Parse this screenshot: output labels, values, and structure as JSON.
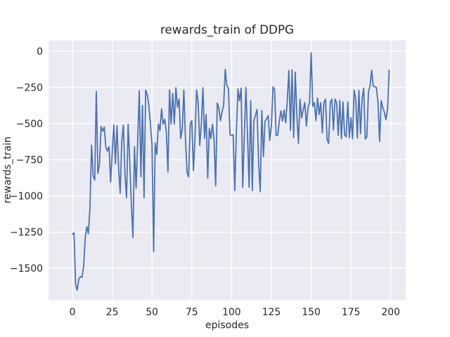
{
  "chart_data": {
    "type": "line",
    "title": "rewards_train of DDPG",
    "xlabel": "episodes",
    "ylabel": "rewards_train",
    "style": "seaborn-darkgrid",
    "grid": true,
    "legend": false,
    "x_start": 0,
    "x_step": 1,
    "xlim": [
      -14.9,
      209.4
    ],
    "ylim": [
      -1719,
      75
    ],
    "x_ticks": [
      0,
      25,
      50,
      75,
      100,
      125,
      150,
      175,
      200
    ],
    "x_tick_labels": [
      "0",
      "25",
      "50",
      "75",
      "100",
      "125",
      "150",
      "175",
      "200"
    ],
    "y_ticks": [
      0,
      -250,
      -500,
      -750,
      -1000,
      -1250,
      -1500
    ],
    "y_tick_labels": [
      "0",
      "−250",
      "−500",
      "−750",
      "−1000",
      "−1250",
      "−1500"
    ],
    "colors": {
      "line": "#4c72b0",
      "axes_background": "#eaeaf2",
      "grid": "#ffffff",
      "text": "#262626",
      "figure_background": "#ffffff"
    },
    "series": [
      {
        "name": "rewards_train",
        "values": [
          -1264,
          -1255,
          -1611,
          -1652,
          -1574,
          -1558,
          -1562,
          -1490,
          -1296,
          -1213,
          -1261,
          -1085,
          -650,
          -860,
          -890,
          -277,
          -844,
          -780,
          -520,
          -553,
          -524,
          -665,
          -689,
          -660,
          -905,
          -697,
          -510,
          -779,
          -515,
          -803,
          -981,
          -620,
          -510,
          -850,
          -1013,
          -504,
          -762,
          -1053,
          -1288,
          -660,
          -947,
          -620,
          -273,
          -867,
          -374,
          -1013,
          -268,
          -301,
          -375,
          -503,
          -650,
          -1385,
          -633,
          -713,
          -503,
          -548,
          -398,
          -503,
          -470,
          -560,
          -835,
          -267,
          -503,
          -291,
          -503,
          -252,
          -388,
          -330,
          -602,
          -540,
          -267,
          -602,
          -835,
          -868,
          -503,
          -480,
          -825,
          -600,
          -267,
          -359,
          -650,
          -503,
          -252,
          -602,
          -437,
          -877,
          -534,
          -602,
          -503,
          -616,
          -930,
          -358,
          -390,
          -480,
          -420,
          -374,
          -125,
          -236,
          -255,
          -578,
          -582,
          -578,
          -963,
          -558,
          -260,
          -342,
          -255,
          -940,
          -578,
          -250,
          -578,
          -940,
          -342,
          -963,
          -483,
          -443,
          -402,
          -777,
          -971,
          -410,
          -729,
          -483,
          -467,
          -445,
          -616,
          -517,
          -247,
          -262,
          -583,
          -578,
          -483,
          -412,
          -483,
          -406,
          -496,
          -341,
          -133,
          -547,
          -128,
          -596,
          -144,
          -438,
          -636,
          -331,
          -462,
          -404,
          -355,
          -518,
          -390,
          -355,
          -10,
          -380,
          -355,
          -479,
          -323,
          -438,
          -355,
          -563,
          -355,
          -331,
          -612,
          -636,
          -355,
          -331,
          -544,
          -331,
          -355,
          -580,
          -340,
          -605,
          -350,
          -575,
          -592,
          -350,
          -597,
          -460,
          -605,
          -268,
          -330,
          -600,
          -270,
          -570,
          -330,
          -255,
          -607,
          -590,
          -280,
          -240,
          -131,
          -240,
          -245,
          -250,
          -358,
          -623,
          -341,
          -390,
          -422,
          -472,
          -398,
          -131
        ]
      }
    ]
  }
}
